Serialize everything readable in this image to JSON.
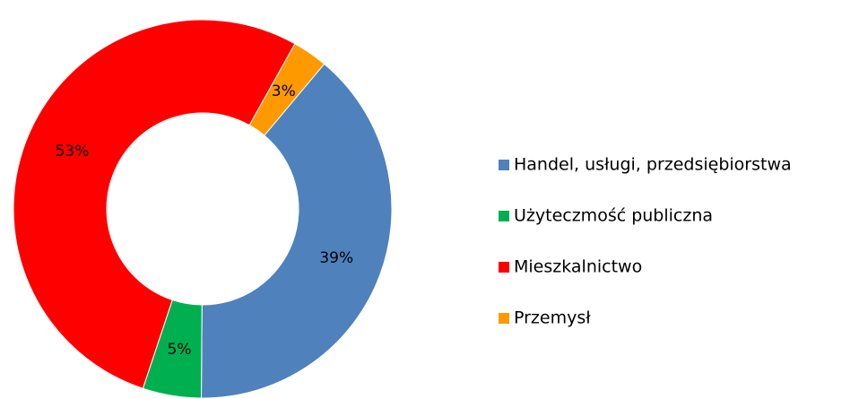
{
  "chart_data": {
    "type": "donut",
    "categories": [
      "Handel, usługi, przedsiębiorstwa",
      "Użyteczmość publiczna",
      "Mieszkalnictwo",
      "Przemysł"
    ],
    "values": [
      39,
      5,
      53,
      3
    ],
    "value_labels": [
      "39%",
      "5%",
      "53%",
      "3%"
    ],
    "colors": [
      "#4f81bd",
      "#00b050",
      "#ff0000",
      "#ff9900"
    ],
    "start_angle": 40,
    "legend": "right"
  }
}
